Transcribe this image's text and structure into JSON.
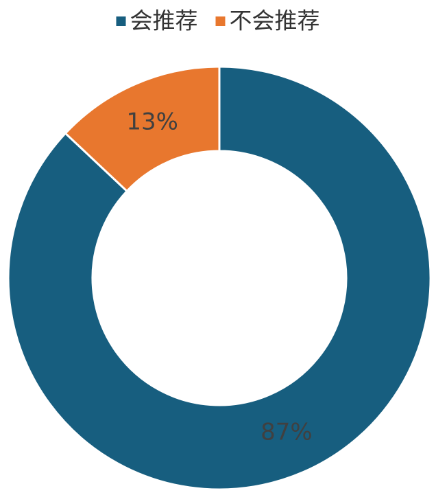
{
  "chart_data": {
    "type": "donut",
    "categories": [
      "会推荐",
      "不会推荐"
    ],
    "values": [
      87,
      13
    ],
    "value_labels": [
      "87%",
      "13%"
    ],
    "colors": [
      "#175e7f",
      "#e8772e"
    ],
    "legend": "top"
  }
}
